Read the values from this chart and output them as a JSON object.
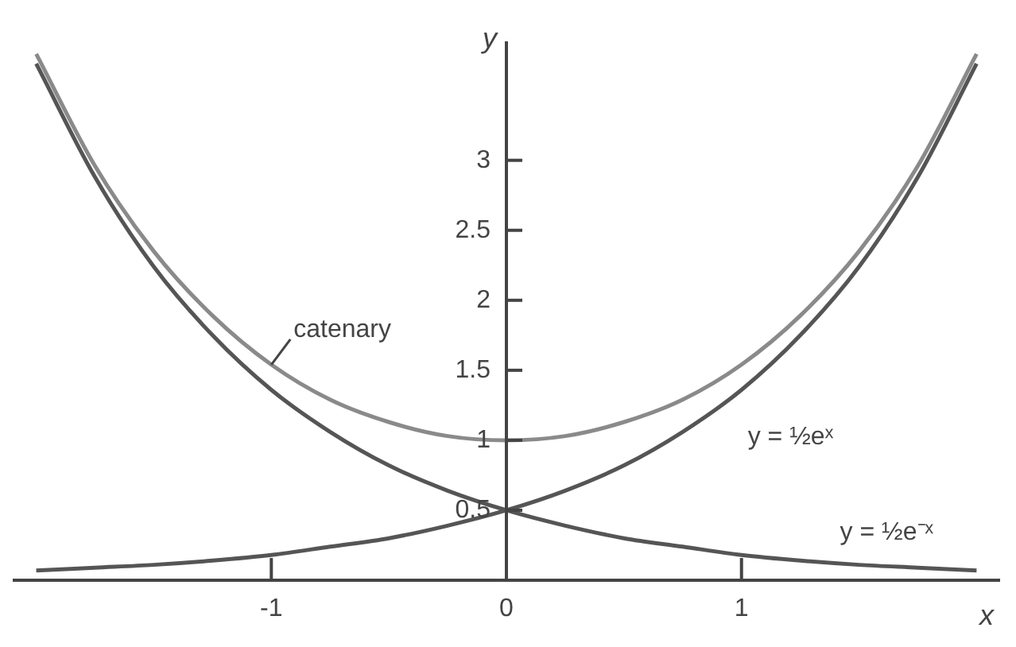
{
  "chart_data": {
    "type": "line",
    "xlabel": "x",
    "ylabel": "y",
    "x": [
      -2,
      -1.75,
      -1.5,
      -1.25,
      -1,
      -0.75,
      -0.5,
      -0.25,
      0,
      0.25,
      0.5,
      0.75,
      1,
      1.25,
      1.5,
      1.75,
      2
    ],
    "series": [
      {
        "color": "#8a8a8a",
        "values": [
          3.76,
          2.96,
          2.35,
          1.89,
          1.54,
          1.29,
          1.13,
          1.03,
          1,
          1.03,
          1.13,
          1.29,
          1.54,
          1.89,
          2.35,
          2.96,
          3.76
        ]
      },
      {
        "color": "#555555",
        "values": [
          0.07,
          0.09,
          0.11,
          0.14,
          0.18,
          0.24,
          0.3,
          0.39,
          0.5,
          0.64,
          0.82,
          1.06,
          1.36,
          1.75,
          2.24,
          2.88,
          3.69
        ]
      },
      {
        "color": "#555555",
        "values": [
          3.69,
          2.88,
          2.24,
          1.75,
          1.36,
          1.06,
          0.82,
          0.64,
          0.5,
          0.39,
          0.3,
          0.24,
          0.18,
          0.14,
          0.11,
          0.09,
          0.07
        ]
      }
    ],
    "xlim": [
      -2.1,
      2.1
    ],
    "ylim": [
      0,
      3.85
    ],
    "xticks": [
      -1,
      0,
      1
    ],
    "yticks": [
      0.5,
      1,
      1.5,
      2,
      2.5,
      3
    ],
    "annotations": [
      {
        "text": "catenary",
        "x": -1,
        "y": 1.54
      },
      {
        "text": "y = ½eˣ",
        "x": 1,
        "y": 1.36
      },
      {
        "text": "y = ½e⁻ˣ",
        "x": 1.5,
        "y": 0.11
      }
    ],
    "legend": false,
    "marker": "none",
    "line_style": "solid"
  }
}
